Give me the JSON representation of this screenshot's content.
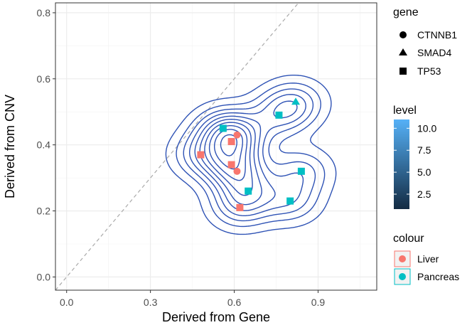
{
  "chart_data": {
    "type": "scatter",
    "xlabel": "Derived from Gene",
    "ylabel": "Derived from CNV",
    "xlim": [
      -0.04,
      1.11
    ],
    "ylim": [
      -0.04,
      0.83
    ],
    "x_ticks": [
      0.0,
      0.3,
      0.6,
      0.9
    ],
    "x_tick_labels": [
      "0.0",
      "0.3",
      "0.6",
      "0.9"
    ],
    "y_ticks": [
      0.0,
      0.2,
      0.4,
      0.6,
      0.8
    ],
    "y_tick_labels": [
      "0.0",
      "0.2",
      "0.4",
      "0.6",
      "0.8"
    ],
    "grid": true,
    "reference_line": {
      "slope": 1,
      "intercept": 0,
      "style": "dashed",
      "color": "#aaaaaa"
    },
    "points": [
      {
        "x": 0.61,
        "y": 0.43,
        "gene": "CTNNB1",
        "colour": "Liver"
      },
      {
        "x": 0.61,
        "y": 0.32,
        "gene": "CTNNB1",
        "colour": "Liver"
      },
      {
        "x": 0.82,
        "y": 0.53,
        "gene": "SMAD4",
        "colour": "Pancreas"
      },
      {
        "x": 0.48,
        "y": 0.37,
        "gene": "TP53",
        "colour": "Liver"
      },
      {
        "x": 0.59,
        "y": 0.41,
        "gene": "TP53",
        "colour": "Liver"
      },
      {
        "x": 0.59,
        "y": 0.34,
        "gene": "TP53",
        "colour": "Liver"
      },
      {
        "x": 0.62,
        "y": 0.21,
        "gene": "TP53",
        "colour": "Liver"
      },
      {
        "x": 0.56,
        "y": 0.45,
        "gene": "TP53",
        "colour": "Pancreas"
      },
      {
        "x": 0.76,
        "y": 0.49,
        "gene": "TP53",
        "colour": "Pancreas"
      },
      {
        "x": 0.65,
        "y": 0.26,
        "gene": "TP53",
        "colour": "Pancreas"
      },
      {
        "x": 0.84,
        "y": 0.32,
        "gene": "TP53",
        "colour": "Pancreas"
      },
      {
        "x": 0.8,
        "y": 0.23,
        "gene": "TP53",
        "colour": "Pancreas"
      }
    ],
    "density_contours": {
      "color": "#2f53b5",
      "levels": 10
    },
    "legends": {
      "gene": {
        "title": "gene",
        "entries": [
          {
            "label": "CTNNB1",
            "shape": "circle"
          },
          {
            "label": "SMAD4",
            "shape": "triangle"
          },
          {
            "label": "TP53",
            "shape": "square"
          }
        ]
      },
      "level": {
        "title": "level",
        "min": 0.8,
        "max": 11.0,
        "ticks": [
          10.0,
          7.5,
          5.0,
          2.5
        ],
        "tick_labels": [
          "10.0",
          "7.5",
          "5.0",
          "2.5"
        ],
        "color_low": "#132b43",
        "color_high": "#56b1f7"
      },
      "colour": {
        "title": "colour",
        "entries": [
          {
            "label": "Liver",
            "color": "#f8766d"
          },
          {
            "label": "Pancreas",
            "color": "#00bfc4"
          }
        ]
      }
    }
  }
}
